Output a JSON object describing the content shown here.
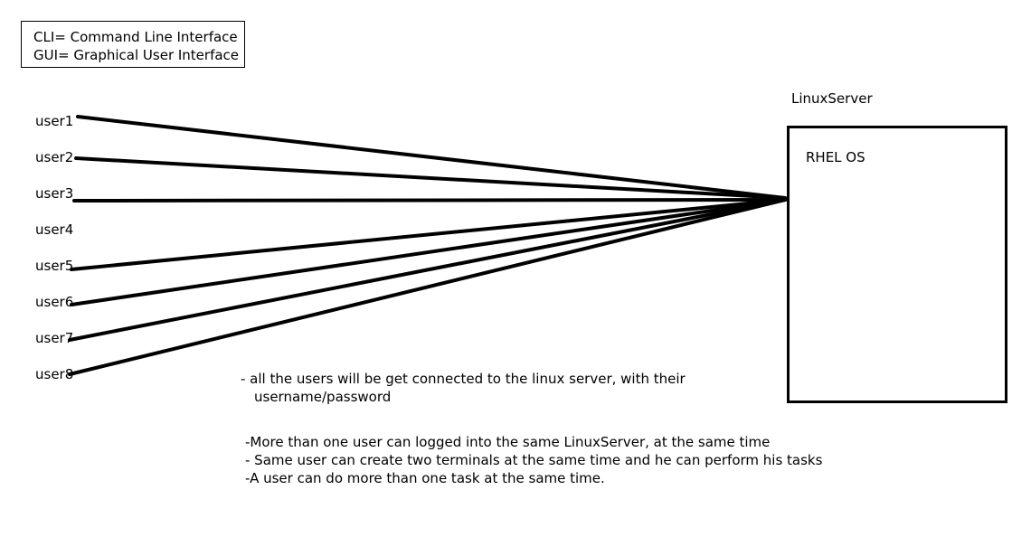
{
  "legend": {
    "line1": "CLI= Command Line Interface",
    "line2": "GUI= Graphical User Interface"
  },
  "users": [
    "user1",
    "user2",
    "user3",
    "user4",
    "user5",
    "user6",
    "user7",
    "user8"
  ],
  "server": {
    "title": "LinuxServer",
    "os_label": "RHEL OS"
  },
  "notes": {
    "note1_line1": "- all the users will be get connected to the linux server, with their",
    "note1_line2": "username/password",
    "note2": "-More than one user can logged into the same LinuxServer, at the same time",
    "note3": "- Same user can create two terminals at the same time and he can perform his tasks",
    "note4": "-A user can do more than one task at the same time."
  },
  "colors": {
    "line": "#000000",
    "background": "#ffffff"
  }
}
